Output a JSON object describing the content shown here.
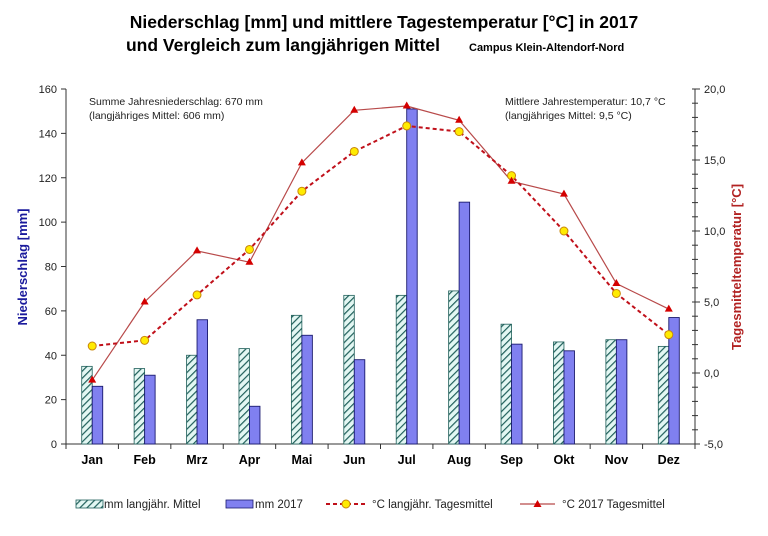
{
  "chart_data": {
    "type": "bar",
    "title": "Niederschlag [mm] und mittlere Tagestemperatur [°C] in 2017",
    "title_line2": "und Vergleich zum langjährigen Mittel",
    "subtitle": "Campus Klein-Altendorf-Nord",
    "categories": [
      "Jan",
      "Feb",
      "Mrz",
      "Apr",
      "Mai",
      "Jun",
      "Jul",
      "Aug",
      "Sep",
      "Okt",
      "Nov",
      "Dez"
    ],
    "ylabel": "Niederschlag  [mm]",
    "ylabel_right": "Tagesmitteltemperatur  [°C]",
    "ylim": [
      0,
      160
    ],
    "ylim_right": [
      -5,
      20
    ],
    "yticks": [
      "0",
      "20",
      "40",
      "60",
      "80",
      "100",
      "120",
      "140",
      "160"
    ],
    "yticks_right": [
      "-5,0",
      "0,0",
      "5,0",
      "10,0",
      "15,0",
      "20,0"
    ],
    "grid": false,
    "legend_position": "bottom",
    "series": [
      {
        "name": "mm langjähr. Mittel",
        "type": "bar",
        "axis": "left",
        "pattern": "hatched",
        "color": "#1f5f5a",
        "fill": "#e0f7f4",
        "values": [
          35,
          34,
          40,
          43,
          58,
          67,
          67,
          69,
          54,
          46,
          47,
          44
        ]
      },
      {
        "name": "mm 2017",
        "type": "bar",
        "axis": "left",
        "color": "#8080f0",
        "border": "#1a1a6e",
        "values": [
          26,
          31,
          56,
          17,
          49,
          38,
          151,
          109,
          45,
          42,
          47,
          57
        ]
      },
      {
        "name": "°C langjähr. Tagesmittel",
        "type": "line",
        "axis": "right",
        "style": "dashed",
        "marker": "circle",
        "color": "#c0101a",
        "marker_color": "#ffeb00",
        "values": [
          1.9,
          2.3,
          5.5,
          8.7,
          12.8,
          15.6,
          17.4,
          17.0,
          13.9,
          10.0,
          5.6,
          2.7
        ]
      },
      {
        "name": "°C 2017 Tagesmittel",
        "type": "line",
        "axis": "right",
        "style": "solid",
        "marker": "triangle",
        "color": "#b84a4a",
        "marker_color": "#d40000",
        "values": [
          -0.5,
          5.0,
          8.6,
          7.8,
          14.8,
          18.5,
          18.8,
          17.8,
          13.5,
          12.6,
          6.3,
          4.5
        ]
      }
    ],
    "annotations": {
      "left_line1": "Summe Jahresniederschlag:  670 mm",
      "left_line2": "(langjähriges Mittel:  606 mm)",
      "right_line1": "Mittlere Jahrestemperatur:  10,7 °C",
      "right_line2": "(langjähriges Mittel:  9,5 °C)"
    }
  }
}
